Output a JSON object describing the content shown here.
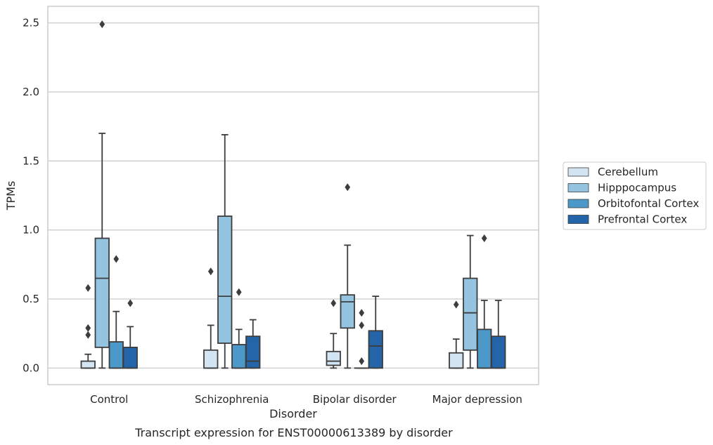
{
  "chart_data": {
    "type": "box",
    "caption": "Transcript expression for ENST00000613389 by disorder",
    "xlabel": "Disorder",
    "ylabel": "TPMs",
    "ylim": [
      -0.12,
      2.62
    ],
    "yticks": [
      0.0,
      0.5,
      1.0,
      1.5,
      2.0,
      2.5
    ],
    "ytick_labels": [
      "0.0",
      "0.5",
      "1.0",
      "1.5",
      "2.0",
      "2.5"
    ],
    "categories": [
      "Control",
      "Schizophrenia",
      "Bipolar disorder",
      "Major depression"
    ],
    "grid": true,
    "legend_position": "right",
    "series": [
      {
        "name": "Cerebellum",
        "color": "#d3e4f3",
        "boxes": [
          {
            "whisker_low": 0.0,
            "q1": 0.0,
            "median": 0.0,
            "q3": 0.05,
            "whisker_high": 0.1,
            "outliers": [
              0.58,
              0.29,
              0.24
            ]
          },
          {
            "whisker_low": 0.0,
            "q1": 0.0,
            "median": 0.0,
            "q3": 0.13,
            "whisker_high": 0.31,
            "outliers": [
              0.7
            ]
          },
          {
            "whisker_low": 0.0,
            "q1": 0.02,
            "median": 0.05,
            "q3": 0.12,
            "whisker_high": 0.25,
            "outliers": [
              0.47
            ]
          },
          {
            "whisker_low": 0.0,
            "q1": 0.0,
            "median": 0.0,
            "q3": 0.11,
            "whisker_high": 0.21,
            "outliers": [
              0.46
            ]
          }
        ]
      },
      {
        "name": "Hipppocampus",
        "color": "#94c4df",
        "boxes": [
          {
            "whisker_low": 0.0,
            "q1": 0.15,
            "median": 0.65,
            "q3": 0.94,
            "whisker_high": 1.7,
            "outliers": [
              2.49
            ]
          },
          {
            "whisker_low": 0.0,
            "q1": 0.18,
            "median": 0.52,
            "q3": 1.1,
            "whisker_high": 1.69,
            "outliers": []
          },
          {
            "whisker_low": 0.0,
            "q1": 0.29,
            "median": 0.48,
            "q3": 0.53,
            "whisker_high": 0.89,
            "outliers": [
              1.31
            ]
          },
          {
            "whisker_low": 0.0,
            "q1": 0.13,
            "median": 0.4,
            "q3": 0.65,
            "whisker_high": 0.96,
            "outliers": []
          }
        ]
      },
      {
        "name": "Orbitofontal Cortex",
        "color": "#4b98c9",
        "boxes": [
          {
            "whisker_low": 0.0,
            "q1": 0.0,
            "median": 0.0,
            "q3": 0.19,
            "whisker_high": 0.41,
            "outliers": [
              0.79
            ]
          },
          {
            "whisker_low": 0.0,
            "q1": 0.0,
            "median": 0.0,
            "q3": 0.17,
            "whisker_high": 0.28,
            "outliers": [
              0.55
            ]
          },
          {
            "whisker_low": 0.0,
            "q1": 0.0,
            "median": 0.0,
            "q3": 0.0,
            "whisker_high": 0.0,
            "outliers": [
              0.4,
              0.31,
              0.05
            ]
          },
          {
            "whisker_low": 0.0,
            "q1": 0.0,
            "median": 0.0,
            "q3": 0.28,
            "whisker_high": 0.49,
            "outliers": [
              0.94
            ]
          }
        ]
      },
      {
        "name": "Prefrontal Cortex",
        "color": "#2365a8",
        "boxes": [
          {
            "whisker_low": 0.0,
            "q1": 0.0,
            "median": 0.0,
            "q3": 0.15,
            "whisker_high": 0.3,
            "outliers": [
              0.47
            ]
          },
          {
            "whisker_low": 0.0,
            "q1": 0.0,
            "median": 0.05,
            "q3": 0.23,
            "whisker_high": 0.35,
            "outliers": []
          },
          {
            "whisker_low": 0.0,
            "q1": 0.0,
            "median": 0.16,
            "q3": 0.27,
            "whisker_high": 0.52,
            "outliers": []
          },
          {
            "whisker_low": 0.0,
            "q1": 0.0,
            "median": 0.0,
            "q3": 0.23,
            "whisker_high": 0.49,
            "outliers": []
          }
        ]
      }
    ]
  }
}
